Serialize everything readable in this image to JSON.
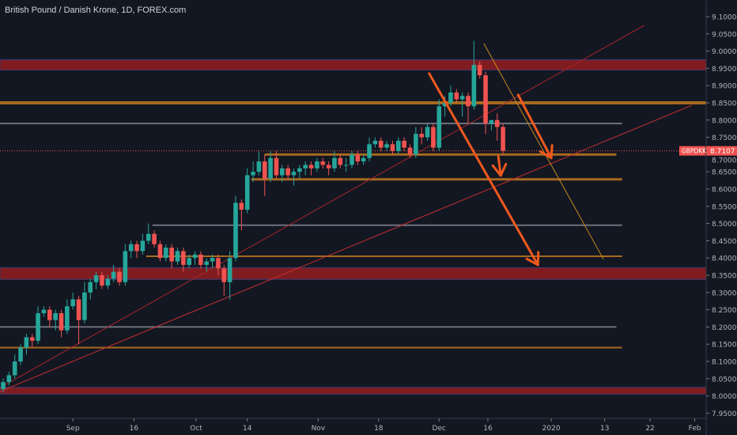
{
  "header": {
    "title": "British Pound / Danish Krone, 1D, FOREX.com"
  },
  "colors": {
    "bg": "#131722",
    "up": "#26a69a",
    "down": "#ef5350",
    "zone": "#801c1f",
    "orange": "#b8721f",
    "gray": "#787b86",
    "arrow": "#f0591e",
    "axis_text": "#b2b5be"
  },
  "chart_data": {
    "type": "candlestick",
    "title": "British Pound / Danish Krone, 1D, FOREX.com",
    "symbol": "GBPDKK",
    "last_price": "8.7107",
    "ylim": [
      7.94,
      9.12
    ],
    "y_ticks": [
      "9.1000",
      "9.0500",
      "9.0000",
      "8.9500",
      "8.9000",
      "8.8500",
      "8.8000",
      "8.7500",
      "8.7000",
      "8.6500",
      "8.6000",
      "8.5500",
      "8.5000",
      "8.4500",
      "8.4000",
      "8.3500",
      "8.3000",
      "8.2500",
      "8.2000",
      "8.1500",
      "8.1000",
      "8.0500",
      "8.0000",
      "7.9500"
    ],
    "x_ticks": [
      {
        "label": "Sep",
        "bar": 12
      },
      {
        "label": "16",
        "bar": 22.5
      },
      {
        "label": "Oct",
        "bar": 33.2
      },
      {
        "label": "14",
        "bar": 42
      },
      {
        "label": "Nov",
        "bar": 54.2
      },
      {
        "label": "18",
        "bar": 64.6
      },
      {
        "label": "Dec",
        "bar": 75
      },
      {
        "label": "16",
        "bar": 83.4
      },
      {
        "label": "2020",
        "bar": 94.3
      },
      {
        "label": "13",
        "bar": 103.5
      },
      {
        "label": "22",
        "bar": 111.3
      },
      {
        "label": "Feb",
        "bar": 119
      }
    ],
    "ohlc": [
      [
        8.02,
        8.05,
        8.01,
        8.04
      ],
      [
        8.04,
        8.07,
        8.03,
        8.06
      ],
      [
        8.06,
        8.12,
        8.05,
        8.1
      ],
      [
        8.1,
        8.15,
        8.09,
        8.14
      ],
      [
        8.14,
        8.18,
        8.12,
        8.17
      ],
      [
        8.17,
        8.18,
        8.14,
        8.16
      ],
      [
        8.16,
        8.26,
        8.15,
        8.24
      ],
      [
        8.24,
        8.26,
        8.23,
        8.25
      ],
      [
        8.25,
        8.26,
        8.2,
        8.22
      ],
      [
        8.22,
        8.25,
        8.19,
        8.24
      ],
      [
        8.24,
        8.25,
        8.17,
        8.19
      ],
      [
        8.19,
        8.28,
        8.18,
        8.26
      ],
      [
        8.26,
        8.3,
        8.25,
        8.28
      ],
      [
        8.28,
        8.29,
        8.15,
        8.22
      ],
      [
        8.22,
        8.33,
        8.21,
        8.3
      ],
      [
        8.3,
        8.34,
        8.28,
        8.33
      ],
      [
        8.33,
        8.36,
        8.31,
        8.35
      ],
      [
        8.35,
        8.36,
        8.31,
        8.32
      ],
      [
        8.32,
        8.35,
        8.31,
        8.34
      ],
      [
        8.34,
        8.38,
        8.33,
        8.36
      ],
      [
        8.36,
        8.37,
        8.32,
        8.33
      ],
      [
        8.33,
        8.44,
        8.32,
        8.42
      ],
      [
        8.42,
        8.45,
        8.4,
        8.44
      ],
      [
        8.44,
        8.45,
        8.4,
        8.42
      ],
      [
        8.42,
        8.47,
        8.41,
        8.45
      ],
      [
        8.45,
        8.5,
        8.44,
        8.47
      ],
      [
        8.47,
        8.48,
        8.43,
        8.44
      ],
      [
        8.44,
        8.45,
        8.39,
        8.4
      ],
      [
        8.4,
        8.44,
        8.39,
        8.43
      ],
      [
        8.43,
        8.44,
        8.37,
        8.39
      ],
      [
        8.39,
        8.43,
        8.38,
        8.42
      ],
      [
        8.42,
        8.43,
        8.36,
        8.38
      ],
      [
        8.38,
        8.41,
        8.37,
        8.4
      ],
      [
        8.4,
        8.42,
        8.38,
        8.41
      ],
      [
        8.41,
        8.42,
        8.37,
        8.38
      ],
      [
        8.38,
        8.4,
        8.36,
        8.39
      ],
      [
        8.39,
        8.41,
        8.37,
        8.4
      ],
      [
        8.4,
        8.41,
        8.35,
        8.37
      ],
      [
        8.37,
        8.38,
        8.29,
        8.33
      ],
      [
        8.33,
        8.42,
        8.28,
        8.4
      ],
      [
        8.4,
        8.58,
        8.39,
        8.56
      ],
      [
        8.56,
        8.57,
        8.48,
        8.54
      ],
      [
        8.54,
        8.66,
        8.53,
        8.64
      ],
      [
        8.64,
        8.68,
        8.62,
        8.65
      ],
      [
        8.65,
        8.71,
        8.64,
        8.68
      ],
      [
        8.68,
        8.7,
        8.58,
        8.63
      ],
      [
        8.63,
        8.71,
        8.62,
        8.69
      ],
      [
        8.69,
        8.71,
        8.63,
        8.64
      ],
      [
        8.64,
        8.67,
        8.62,
        8.66
      ],
      [
        8.66,
        8.67,
        8.63,
        8.64
      ],
      [
        8.64,
        8.66,
        8.61,
        8.65
      ],
      [
        8.65,
        8.67,
        8.63,
        8.66
      ],
      [
        8.66,
        8.68,
        8.64,
        8.67
      ],
      [
        8.67,
        8.68,
        8.64,
        8.66
      ],
      [
        8.66,
        8.69,
        8.65,
        8.68
      ],
      [
        8.68,
        8.69,
        8.66,
        8.67
      ],
      [
        8.67,
        8.68,
        8.64,
        8.66
      ],
      [
        8.66,
        8.71,
        8.65,
        8.69
      ],
      [
        8.69,
        8.7,
        8.66,
        8.67
      ],
      [
        8.67,
        8.69,
        8.65,
        8.67
      ],
      [
        8.67,
        8.71,
        8.66,
        8.7
      ],
      [
        8.7,
        8.71,
        8.67,
        8.68
      ],
      [
        8.68,
        8.7,
        8.67,
        8.69
      ],
      [
        8.69,
        8.75,
        8.68,
        8.73
      ],
      [
        8.73,
        8.75,
        8.72,
        8.74
      ],
      [
        8.74,
        8.75,
        8.71,
        8.72
      ],
      [
        8.72,
        8.74,
        8.71,
        8.73
      ],
      [
        8.73,
        8.74,
        8.7,
        8.71
      ],
      [
        8.71,
        8.75,
        8.7,
        8.74
      ],
      [
        8.74,
        8.75,
        8.71,
        8.72
      ],
      [
        8.72,
        8.73,
        8.69,
        8.7
      ],
      [
        8.7,
        8.78,
        8.69,
        8.76
      ],
      [
        8.76,
        8.78,
        8.73,
        8.75
      ],
      [
        8.75,
        8.79,
        8.74,
        8.78
      ],
      [
        8.78,
        8.79,
        8.71,
        8.72
      ],
      [
        8.72,
        8.86,
        8.71,
        8.84
      ],
      [
        8.84,
        8.87,
        8.81,
        8.85
      ],
      [
        8.85,
        8.9,
        8.84,
        8.88
      ],
      [
        8.88,
        8.89,
        8.85,
        8.86
      ],
      [
        8.86,
        8.88,
        8.81,
        8.87
      ],
      [
        8.87,
        8.88,
        8.79,
        8.84
      ],
      [
        8.84,
        9.03,
        8.83,
        8.96
      ],
      [
        8.96,
        8.97,
        8.92,
        8.93
      ],
      [
        8.93,
        8.94,
        8.76,
        8.79
      ],
      [
        8.79,
        8.8,
        8.77,
        8.8
      ],
      [
        8.8,
        8.82,
        8.74,
        8.78
      ],
      [
        8.78,
        8.79,
        8.7,
        8.7107
      ]
    ],
    "zones": [
      {
        "name": "resistance-zone-top",
        "low": 8.945,
        "high": 8.975
      },
      {
        "name": "support-zone-mid",
        "low": 8.338,
        "high": 8.372
      },
      {
        "name": "support-zone-bottom",
        "low": 8.005,
        "high": 8.025
      }
    ],
    "levels": [
      {
        "name": "orange-level-8850",
        "price": 8.85,
        "from": -1,
        "to": 130,
        "color": "orange",
        "width": 4
      },
      {
        "name": "gray-level-8790",
        "price": 8.79,
        "from": -1,
        "to": 106.5,
        "color": "gray",
        "width": 2
      },
      {
        "name": "orange-level-8700",
        "price": 8.7,
        "from": 45,
        "to": 105.5,
        "color": "orange",
        "width": 3
      },
      {
        "name": "orange-level-8628",
        "price": 8.628,
        "from": 42.7,
        "to": 106.5,
        "color": "orange",
        "width": 3
      },
      {
        "name": "gray-level-8495",
        "price": 8.495,
        "from": 25.7,
        "to": 106.5,
        "color": "gray",
        "width": 2
      },
      {
        "name": "orange-level-8405",
        "price": 8.405,
        "from": 24.6,
        "to": 106.5,
        "color": "orange",
        "width": 2
      },
      {
        "name": "gray-level-8200",
        "price": 8.2,
        "from": -1,
        "to": 105.5,
        "color": "gray",
        "width": 2
      },
      {
        "name": "orange-level-8140",
        "price": 8.14,
        "from": -1,
        "to": 106.5,
        "color": "orange",
        "width": 2
      }
    ],
    "trendlines": [
      {
        "name": "trendline-upper",
        "p1": [
          -0.54,
          8.024
        ],
        "p2": [
          110.3,
          9.075
        ],
        "color": "#a8252a"
      },
      {
        "name": "trendline-lower",
        "p1": [
          -0.54,
          8.013
        ],
        "p2": [
          118.5,
          8.843
        ],
        "color": "#c62f2f"
      },
      {
        "name": "trendline-yellow",
        "p1": [
          82.7,
          9.022
        ],
        "p2": [
          103.3,
          8.396
        ],
        "color": "#c98a1c"
      }
    ],
    "arrows": [
      {
        "name": "arrow-long-down",
        "p1": [
          73.3,
          8.935
        ],
        "p2": [
          92,
          8.38
        ]
      },
      {
        "name": "arrow-medium-down",
        "p1": [
          88.6,
          8.873
        ],
        "p2": [
          94.3,
          8.69
        ]
      },
      {
        "name": "arrow-short-down",
        "p1": [
          85.2,
          8.694
        ],
        "p2": [
          85.6,
          8.639
        ]
      }
    ]
  }
}
